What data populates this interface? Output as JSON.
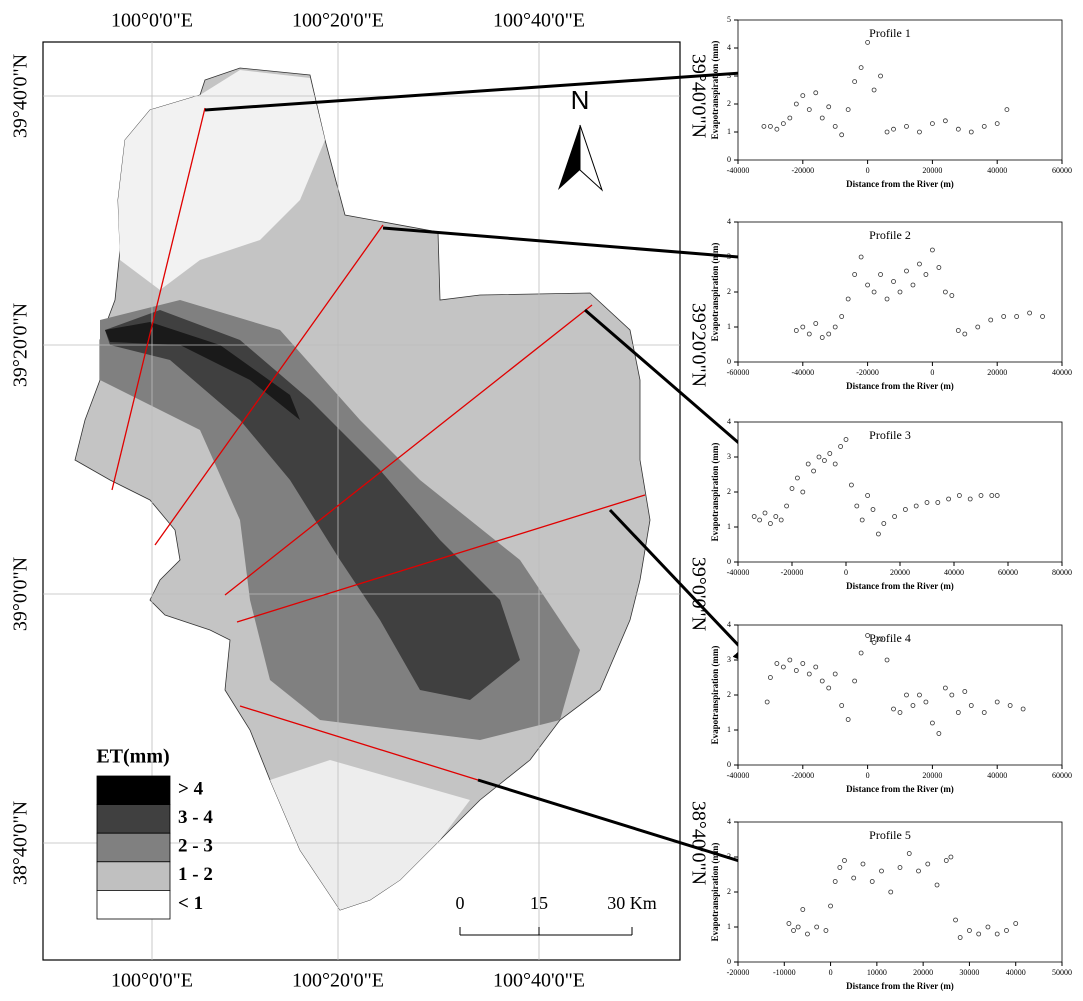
{
  "map": {
    "lon_labels": [
      "100°0'0\"E",
      "100°20'0\"E",
      "100°40'0\"E"
    ],
    "lat_labels": [
      "39°40'0\"N",
      "39°20'0\"N",
      "39°0'0\"N",
      "38°40'0\"N"
    ],
    "north": "N",
    "legend_title": "ET(mm)",
    "legend": [
      {
        "label": "> 4",
        "color": "#000000"
      },
      {
        "label": "3 - 4",
        "color": "#404040"
      },
      {
        "label": "2 - 3",
        "color": "#808080"
      },
      {
        "label": "1 - 2",
        "color": "#c0c0c0"
      },
      {
        "label": "< 1",
        "color": "#ffffff"
      }
    ],
    "scale_labels": [
      "0",
      "15",
      "30 Km"
    ]
  },
  "chart_data": [
    {
      "type": "scatter",
      "title": "Profile 1",
      "y_label": "Evapotranspiration (mm)",
      "x_label": "Distance from the River (m)",
      "color": "#333333",
      "xlim": [
        -40000,
        60000
      ],
      "xticks": [
        -40000,
        -20000,
        0,
        20000,
        40000,
        60000
      ],
      "ylim": [
        0,
        5
      ],
      "yticks": [
        0,
        1,
        2,
        3,
        4,
        5
      ],
      "x": [
        -32000,
        -30000,
        -28000,
        -26000,
        -24000,
        -22000,
        -20000,
        -18000,
        -16000,
        -14000,
        -12000,
        -10000,
        -8000,
        -6000,
        -4000,
        -2000,
        0,
        2000,
        4000,
        6000,
        8000,
        12000,
        16000,
        20000,
        24000,
        28000,
        32000,
        36000,
        40000,
        43000
      ],
      "values": [
        1.2,
        1.2,
        1.1,
        1.3,
        1.5,
        2.0,
        2.3,
        1.8,
        2.4,
        1.5,
        1.9,
        1.2,
        0.9,
        1.8,
        2.8,
        3.3,
        4.2,
        2.5,
        3.0,
        1.0,
        1.1,
        1.2,
        1.0,
        1.3,
        1.4,
        1.1,
        1.0,
        1.2,
        1.3,
        1.8
      ]
    },
    {
      "type": "scatter",
      "title": "Profile 2",
      "y_label": "Evapotranspiration (mm)",
      "x_label": "Distance from the River (m)",
      "color": "#333333",
      "xlim": [
        -60000,
        40000
      ],
      "xticks": [
        -60000,
        -40000,
        -20000,
        0,
        20000,
        40000
      ],
      "ylim": [
        0,
        4
      ],
      "yticks": [
        0,
        1,
        2,
        3,
        4
      ],
      "x": [
        -42000,
        -40000,
        -38000,
        -36000,
        -34000,
        -32000,
        -30000,
        -28000,
        -26000,
        -24000,
        -22000,
        -20000,
        -18000,
        -16000,
        -14000,
        -12000,
        -10000,
        -8000,
        -6000,
        -4000,
        -2000,
        0,
        2000,
        4000,
        6000,
        8000,
        10000,
        14000,
        18000,
        22000,
        26000,
        30000,
        34000
      ],
      "values": [
        0.9,
        1.0,
        0.8,
        1.1,
        0.7,
        0.8,
        1.0,
        1.3,
        1.8,
        2.5,
        3.0,
        2.2,
        2.0,
        2.5,
        1.8,
        2.3,
        2.0,
        2.6,
        2.2,
        2.8,
        2.5,
        3.2,
        2.7,
        2.0,
        1.9,
        0.9,
        0.8,
        1.0,
        1.2,
        1.3,
        1.3,
        1.4,
        1.3
      ]
    },
    {
      "type": "scatter",
      "title": "Profile 3",
      "y_label": "Evapotranspiration (mm)",
      "x_label": "Distance from the River (m)",
      "color": "#333333",
      "xlim": [
        -40000,
        80000
      ],
      "xticks": [
        -40000,
        -20000,
        0,
        20000,
        40000,
        60000,
        80000
      ],
      "ylim": [
        0,
        4
      ],
      "yticks": [
        0,
        1,
        2,
        3,
        4
      ],
      "x": [
        -34000,
        -32000,
        -30000,
        -28000,
        -26000,
        -24000,
        -22000,
        -20000,
        -18000,
        -16000,
        -14000,
        -12000,
        -10000,
        -8000,
        -6000,
        -4000,
        -2000,
        0,
        2000,
        4000,
        6000,
        8000,
        10000,
        12000,
        14000,
        18000,
        22000,
        26000,
        30000,
        34000,
        38000,
        42000,
        46000,
        50000,
        54000,
        56000
      ],
      "values": [
        1.3,
        1.2,
        1.4,
        1.1,
        1.3,
        1.2,
        1.6,
        2.1,
        2.4,
        2.0,
        2.8,
        2.6,
        3.0,
        2.9,
        3.1,
        2.8,
        3.3,
        3.5,
        2.2,
        1.6,
        1.2,
        1.9,
        1.5,
        0.8,
        1.1,
        1.3,
        1.5,
        1.6,
        1.7,
        1.7,
        1.8,
        1.9,
        1.8,
        1.9,
        1.9,
        1.9
      ]
    },
    {
      "type": "scatter",
      "title": "Profile 4",
      "y_label": "Evapotranspiration (mm)",
      "x_label": "Distance from the River (m)",
      "color": "#333333",
      "xlim": [
        -40000,
        60000
      ],
      "xticks": [
        -40000,
        -20000,
        0,
        20000,
        40000,
        60000
      ],
      "ylim": [
        0,
        4
      ],
      "yticks": [
        0,
        1,
        2,
        3,
        4
      ],
      "x": [
        -31000,
        -30000,
        -28000,
        -26000,
        -24000,
        -22000,
        -20000,
        -18000,
        -16000,
        -14000,
        -12000,
        -10000,
        -8000,
        -6000,
        -4000,
        -2000,
        0,
        2000,
        4000,
        6000,
        8000,
        10000,
        12000,
        14000,
        16000,
        18000,
        20000,
        22000,
        24000,
        26000,
        28000,
        30000,
        32000,
        36000,
        40000,
        44000,
        48000
      ],
      "values": [
        1.8,
        2.5,
        2.9,
        2.8,
        3.0,
        2.7,
        2.9,
        2.6,
        2.8,
        2.4,
        2.2,
        2.6,
        1.7,
        1.3,
        2.4,
        3.2,
        3.7,
        3.5,
        3.6,
        3.0,
        1.6,
        1.5,
        2.0,
        1.7,
        2.0,
        1.8,
        1.2,
        0.9,
        2.2,
        2.0,
        1.5,
        2.1,
        1.7,
        1.5,
        1.8,
        1.7,
        1.6
      ]
    },
    {
      "type": "scatter",
      "title": "Profile 5",
      "y_label": "Evapotranspiration (mm)",
      "x_label": "Distance from the River (m)",
      "color": "#333333",
      "xlim": [
        -20000,
        50000
      ],
      "xticks": [
        -20000,
        -10000,
        0,
        10000,
        20000,
        30000,
        40000,
        50000
      ],
      "ylim": [
        0,
        4
      ],
      "yticks": [
        0,
        1,
        2,
        3,
        4
      ],
      "x": [
        -9000,
        -8000,
        -7000,
        -6000,
        -5000,
        -3000,
        -1000,
        0,
        1000,
        2000,
        3000,
        5000,
        7000,
        9000,
        11000,
        13000,
        15000,
        17000,
        19000,
        21000,
        23000,
        25000,
        26000,
        27000,
        28000,
        30000,
        32000,
        34000,
        36000,
        38000,
        40000
      ],
      "values": [
        1.1,
        0.9,
        1.0,
        1.5,
        0.8,
        1.0,
        0.9,
        1.6,
        2.3,
        2.7,
        2.9,
        2.4,
        2.8,
        2.3,
        2.6,
        2.0,
        2.7,
        3.1,
        2.6,
        2.8,
        2.2,
        2.9,
        3.0,
        1.2,
        0.7,
        0.9,
        0.8,
        1.0,
        0.8,
        0.9,
        1.1
      ]
    }
  ]
}
